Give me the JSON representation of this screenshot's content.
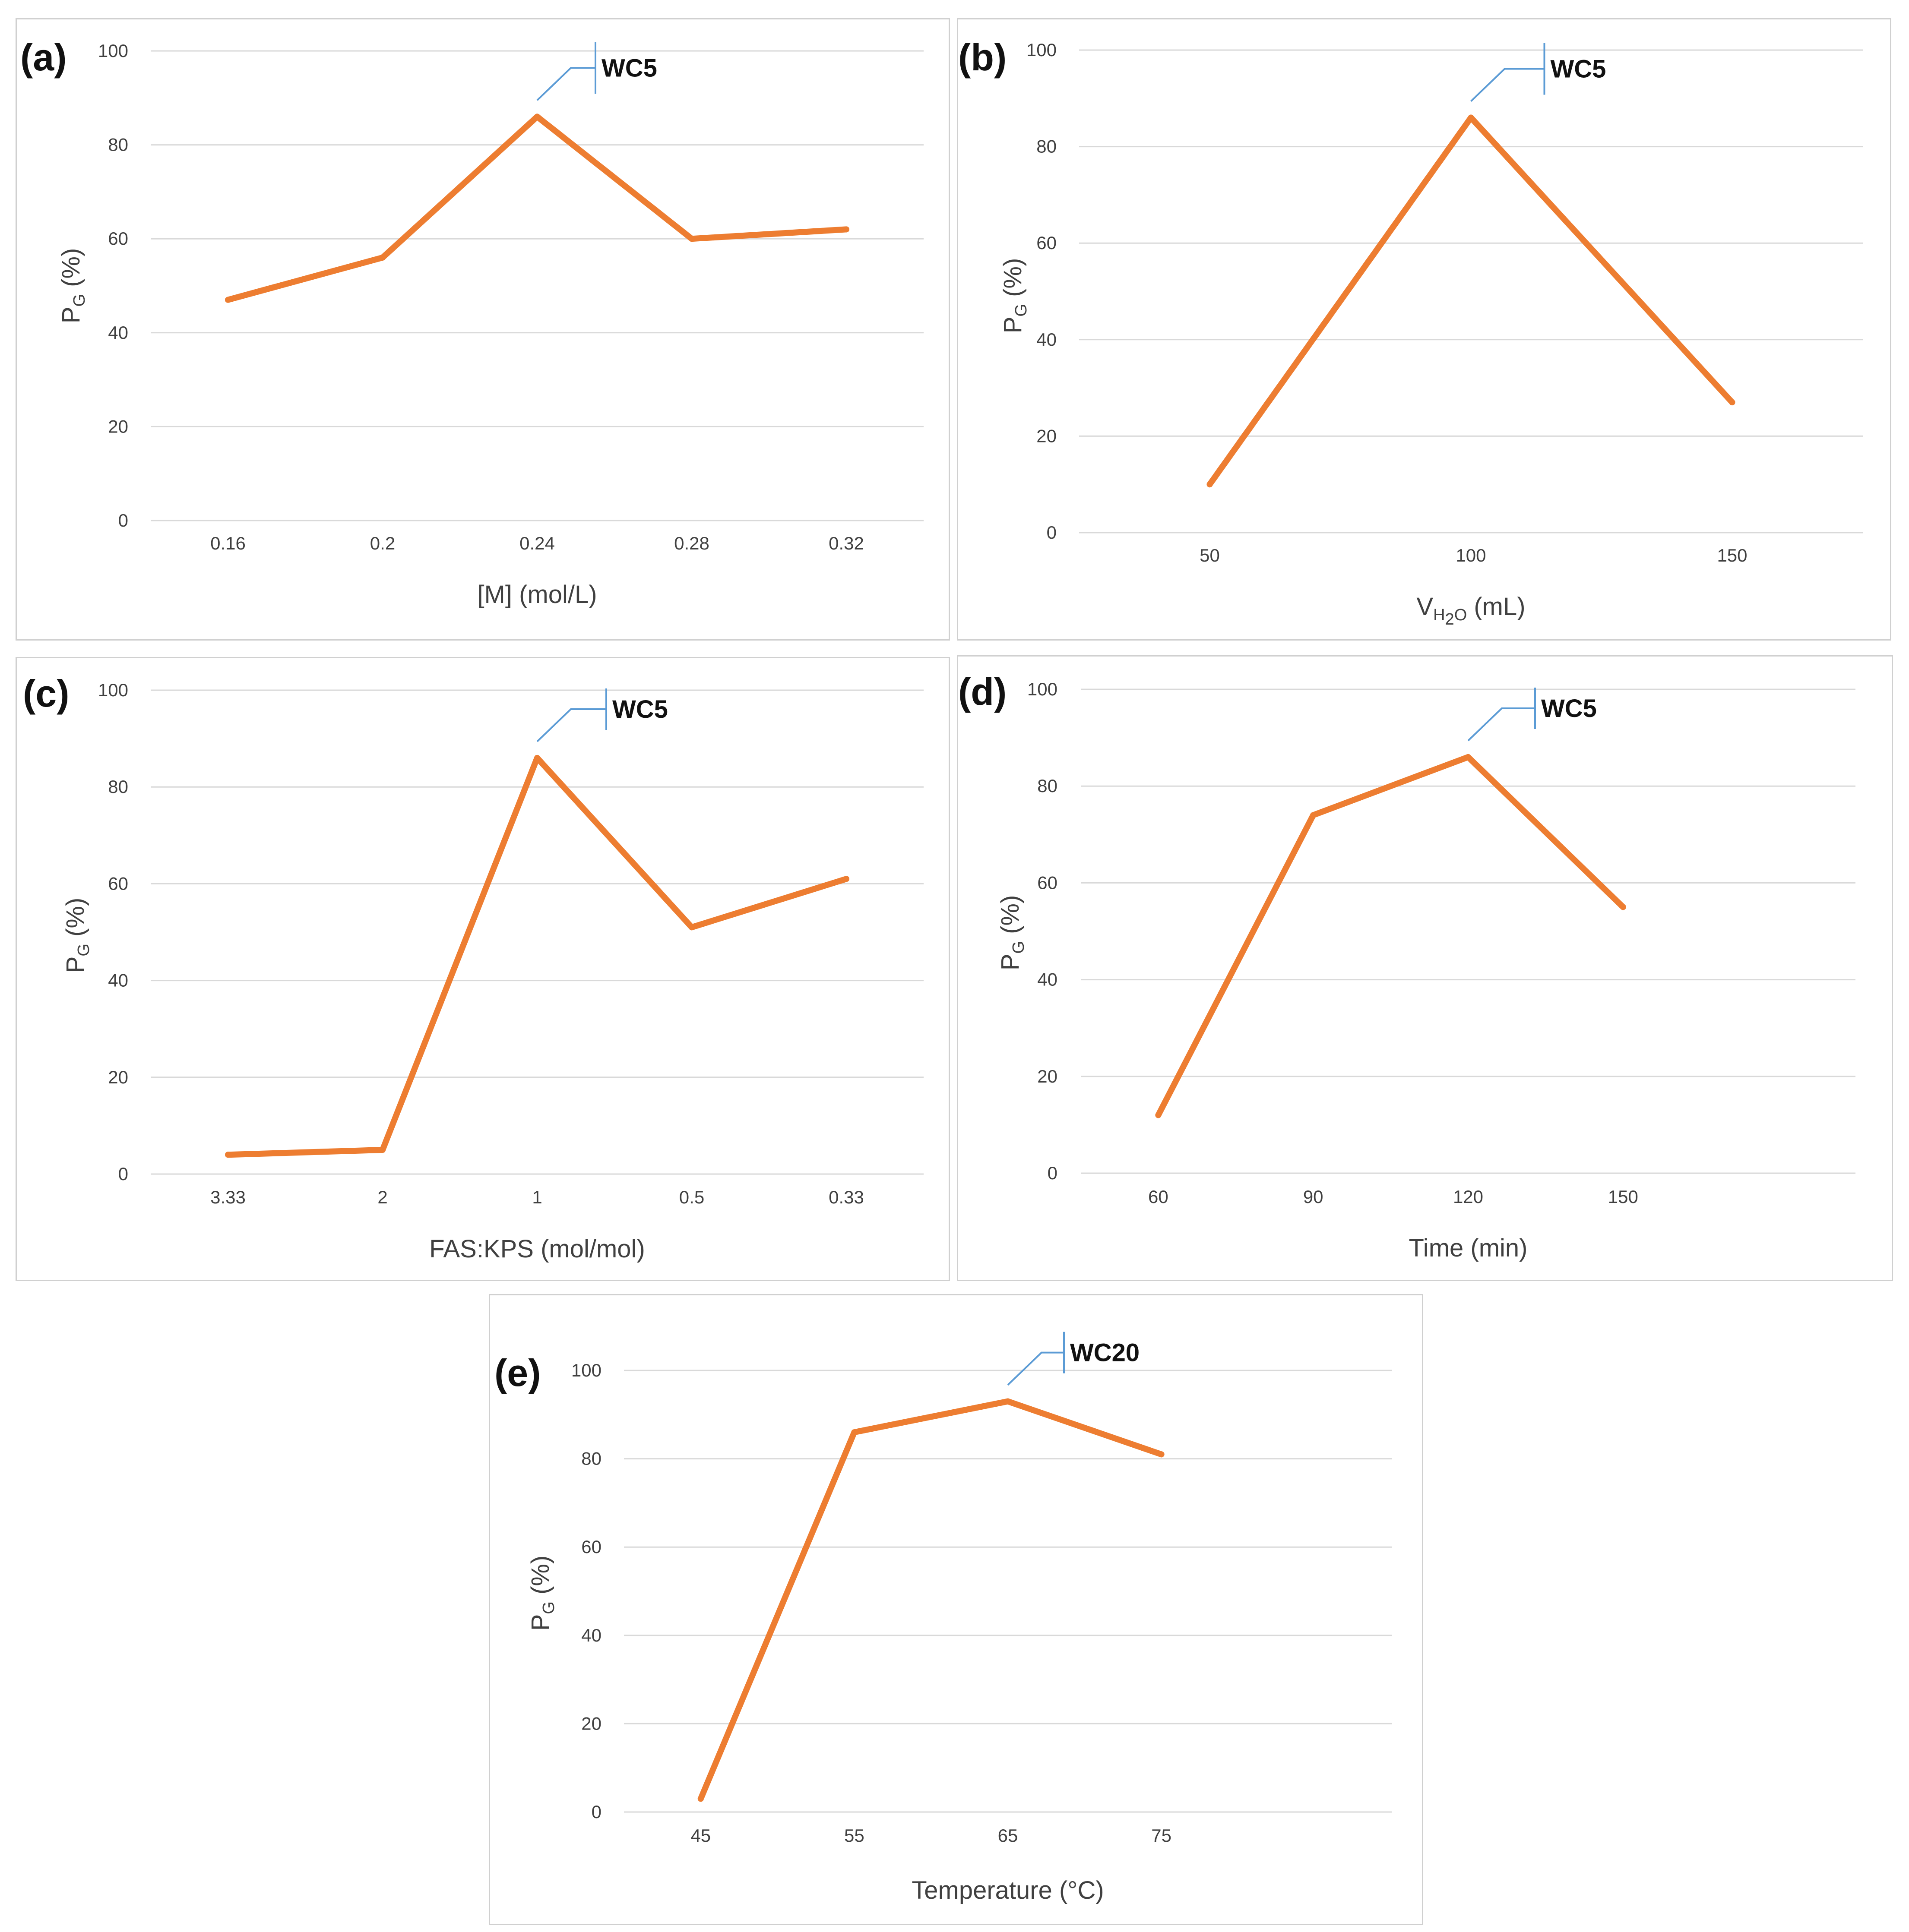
{
  "colors": {
    "series": "#ed7d31",
    "callout": "#5b9bd5",
    "grid": "#d9d9d9",
    "text": "#404040"
  },
  "chart_data": [
    {
      "type": "line",
      "panel_label": "(a)",
      "title": "",
      "xlabel": "[M] (mol/L)",
      "ylabel": {
        "main": "P",
        "sub": "G",
        "suffix": " (%)"
      },
      "categories": [
        "0.16",
        "0.2",
        "0.24",
        "0.28",
        "0.32"
      ],
      "values": [
        47,
        56,
        86,
        60,
        62
      ],
      "ylim": [
        0,
        100
      ],
      "yticks": [
        "0",
        "20",
        "40",
        "60",
        "80",
        "100"
      ],
      "grid": true,
      "annotation": {
        "text": "WC5",
        "category": "0.24",
        "value": 86
      }
    },
    {
      "type": "line",
      "panel_label": "(b)",
      "title": "",
      "xlabel": {
        "main": "V",
        "sub": "H",
        "sub2": "2",
        "tail": "O",
        "suffix": " (mL)"
      },
      "ylabel": {
        "main": "P",
        "sub": "G",
        "suffix": " (%)"
      },
      "categories": [
        "50",
        "100",
        "150"
      ],
      "values": [
        10,
        86,
        27
      ],
      "ylim": [
        0,
        100
      ],
      "yticks": [
        "0",
        "20",
        "40",
        "60",
        "80",
        "100"
      ],
      "grid": true,
      "annotation": {
        "text": "WC5",
        "category": "100",
        "value": 86
      }
    },
    {
      "type": "line",
      "panel_label": "(c)",
      "title": "",
      "xlabel": "FAS:KPS (mol/mol)",
      "ylabel": {
        "main": "P",
        "sub": "G",
        "suffix": " (%)"
      },
      "categories": [
        "3.33",
        "2",
        "1",
        "0.5",
        "0.33"
      ],
      "values": [
        4,
        5,
        86,
        51,
        61
      ],
      "ylim": [
        0,
        100
      ],
      "yticks": [
        "0",
        "20",
        "40",
        "60",
        "80",
        "100"
      ],
      "grid": true,
      "annotation": {
        "text": "WC5",
        "category": "1",
        "value": 86
      }
    },
    {
      "type": "line",
      "panel_label": "(d)",
      "title": "",
      "xlabel": "Time (min)",
      "ylabel": {
        "main": "P",
        "sub": "G",
        "suffix": " (%)"
      },
      "categories": [
        "60",
        "90",
        "120",
        "150",
        ""
      ],
      "values": [
        12,
        74,
        86,
        55,
        null
      ],
      "ylim": [
        0,
        100
      ],
      "yticks": [
        "0",
        "20",
        "40",
        "60",
        "80",
        "100"
      ],
      "grid": true,
      "annotation": {
        "text": "WC5",
        "category": "120",
        "value": 86
      }
    },
    {
      "type": "line",
      "panel_label": "(e)",
      "title": "",
      "xlabel": "Temperature (°C)",
      "ylabel": {
        "main": "P",
        "sub": "G",
        "suffix": " (%)"
      },
      "categories": [
        "45",
        "55",
        "65",
        "75",
        ""
      ],
      "values": [
        3,
        86,
        93,
        81,
        null
      ],
      "ylim": [
        0,
        100
      ],
      "yticks": [
        "0",
        "20",
        "40",
        "60",
        "80",
        "100"
      ],
      "grid": true,
      "annotation": {
        "text": "WC20",
        "category": "65",
        "value": 93
      }
    }
  ]
}
